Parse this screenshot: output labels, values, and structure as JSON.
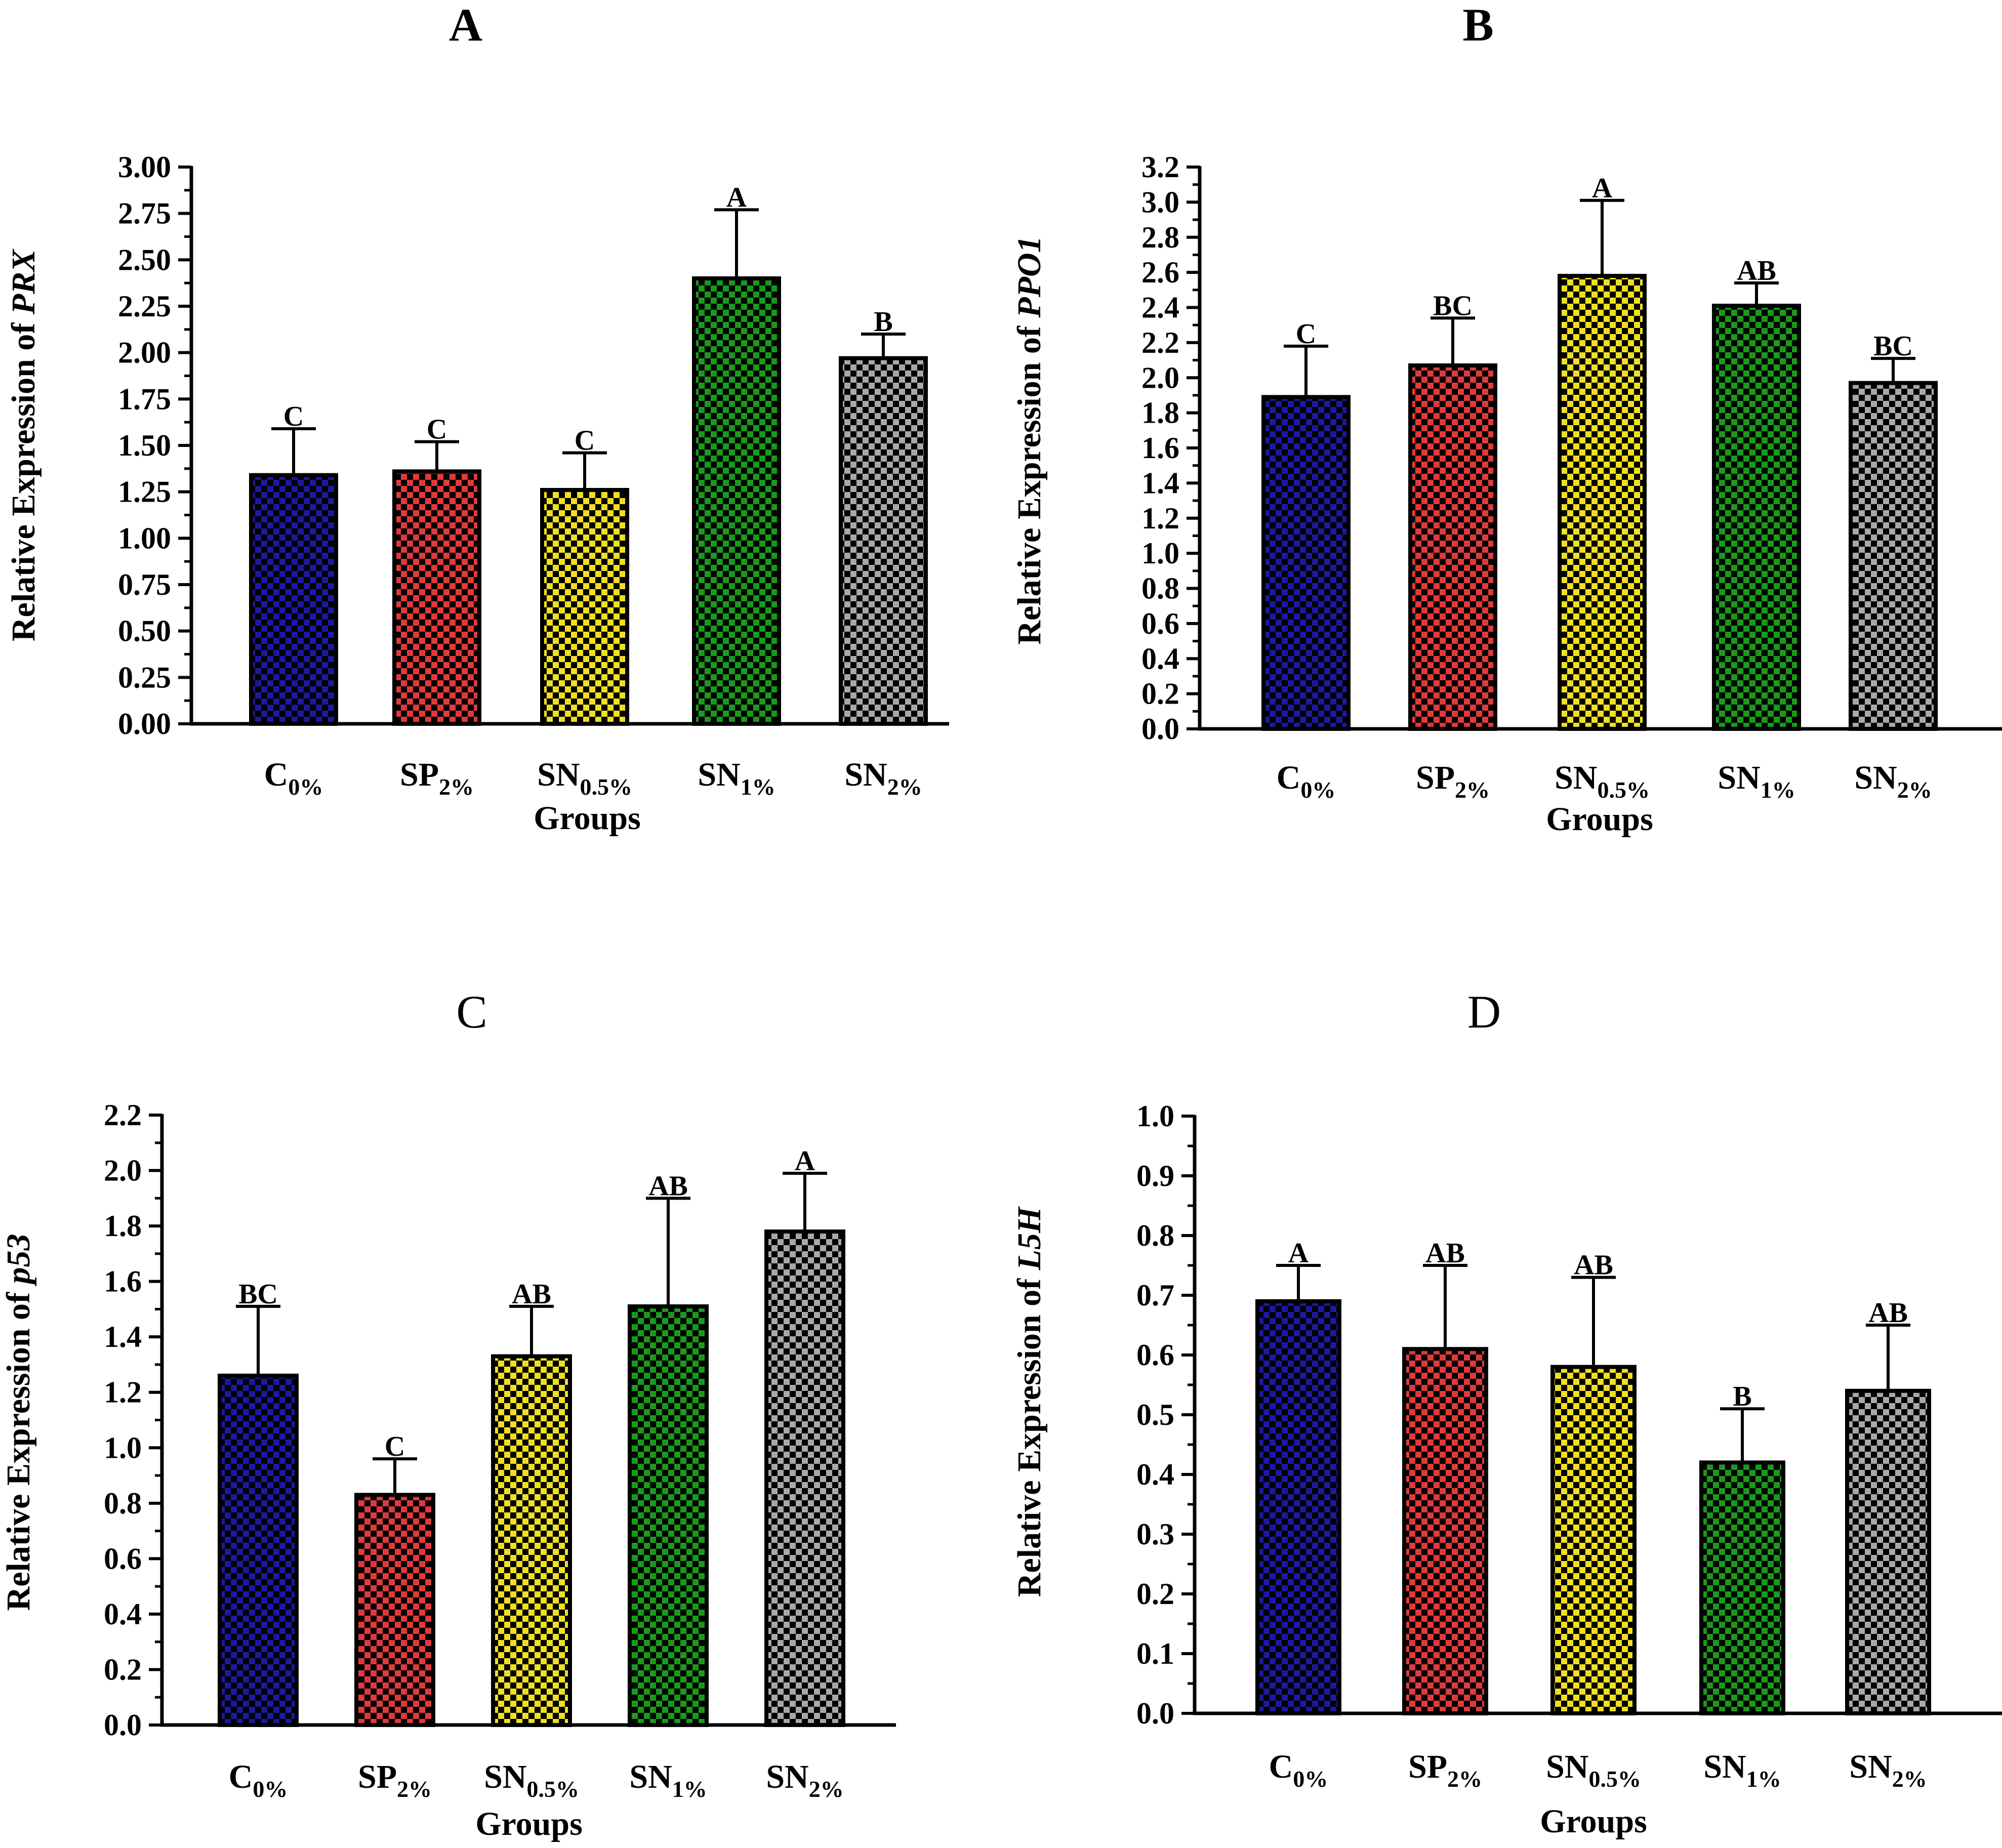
{
  "figure": {
    "panel_ids": [
      "A",
      "B",
      "C",
      "D"
    ],
    "colors": {
      "C0": "#1a1aa0",
      "SP2": "#e03a3a",
      "SN05": "#f0e020",
      "SN1": "#1a9a1a",
      "SN2": "#a8a8a8"
    }
  },
  "chart_data": [
    {
      "panel": "A",
      "type": "bar",
      "title": "A",
      "xlabel": "Groups",
      "ylabel_prefix": "Relative Expression of ",
      "ylabel_gene": "PRX",
      "ylim": [
        0,
        3.0
      ],
      "ytick_step": 0.25,
      "ytick_decimals": 2,
      "yticks": [
        "0.00",
        "0.25",
        "0.50",
        "0.75",
        "1.00",
        "1.25",
        "1.50",
        "1.75",
        "2.00",
        "2.25",
        "2.50",
        "2.75",
        "3.00"
      ],
      "categories": [
        {
          "base": "C",
          "sub": "0%"
        },
        {
          "base": "SP",
          "sub": "2%"
        },
        {
          "base": "SN",
          "sub": "0.5%"
        },
        {
          "base": "SN",
          "sub": "1%"
        },
        {
          "base": "SN",
          "sub": "2%"
        }
      ],
      "values": [
        1.34,
        1.36,
        1.26,
        2.4,
        1.97
      ],
      "errors": [
        0.25,
        0.16,
        0.2,
        0.37,
        0.13
      ],
      "significance": [
        "C",
        "C",
        "C",
        "A",
        "B"
      ]
    },
    {
      "panel": "B",
      "type": "bar",
      "title": "B",
      "xlabel": "Groups",
      "ylabel_prefix": "Relative Expression of ",
      "ylabel_gene": "PPO1",
      "ylim": [
        0,
        3.2
      ],
      "ytick_step": 0.2,
      "ytick_decimals": 1,
      "yticks": [
        "0.0",
        "0.2",
        "0.4",
        "0.6",
        "0.8",
        "1.0",
        "1.2",
        "1.4",
        "1.6",
        "1.8",
        "2.0",
        "2.2",
        "2.4",
        "2.6",
        "2.8",
        "3.0",
        "3.2"
      ],
      "categories": [
        {
          "base": "C",
          "sub": "0%"
        },
        {
          "base": "SP",
          "sub": "2%"
        },
        {
          "base": "SN",
          "sub": "0.5%"
        },
        {
          "base": "SN",
          "sub": "1%"
        },
        {
          "base": "SN",
          "sub": "2%"
        }
      ],
      "values": [
        1.89,
        2.07,
        2.58,
        2.41,
        1.97
      ],
      "errors": [
        0.29,
        0.27,
        0.43,
        0.13,
        0.14
      ],
      "significance": [
        "C",
        "BC",
        "A",
        "AB",
        "BC"
      ]
    },
    {
      "panel": "C",
      "type": "bar",
      "title": "C",
      "xlabel": "Groups",
      "ylabel_prefix": "Relative Expression of ",
      "ylabel_gene": "p53",
      "ylim": [
        0,
        2.2
      ],
      "ytick_step": 0.2,
      "ytick_decimals": 1,
      "yticks": [
        "0.0",
        "0.2",
        "0.4",
        "0.6",
        "0.8",
        "1.0",
        "1.2",
        "1.4",
        "1.6",
        "1.8",
        "2.0",
        "2.2"
      ],
      "categories": [
        {
          "base": "C",
          "sub": "0%"
        },
        {
          "base": "SP",
          "sub": "2%"
        },
        {
          "base": "SN",
          "sub": "0.5%"
        },
        {
          "base": "SN",
          "sub": "1%"
        },
        {
          "base": "SN",
          "sub": "2%"
        }
      ],
      "values": [
        1.26,
        0.83,
        1.33,
        1.51,
        1.78
      ],
      "errors": [
        0.25,
        0.13,
        0.18,
        0.39,
        0.21
      ],
      "significance": [
        "BC",
        "C",
        "AB",
        "AB",
        "A"
      ]
    },
    {
      "panel": "D",
      "type": "bar",
      "title": "D",
      "xlabel": "Groups",
      "ylabel_prefix": "Relative Expression of ",
      "ylabel_gene": "L5H",
      "ylim": [
        0,
        1.0
      ],
      "ytick_step": 0.1,
      "ytick_decimals": 1,
      "yticks": [
        "0.0",
        "0.1",
        "0.2",
        "0.3",
        "0.4",
        "0.5",
        "0.6",
        "0.7",
        "0.8",
        "0.9",
        "1.0"
      ],
      "categories": [
        {
          "base": "C",
          "sub": "0%"
        },
        {
          "base": "SP",
          "sub": "2%"
        },
        {
          "base": "SN",
          "sub": "0.5%"
        },
        {
          "base": "SN",
          "sub": "1%"
        },
        {
          "base": "SN",
          "sub": "2%"
        }
      ],
      "values": [
        0.69,
        0.61,
        0.58,
        0.42,
        0.54
      ],
      "errors": [
        0.06,
        0.14,
        0.15,
        0.09,
        0.11
      ],
      "significance": [
        "A",
        "AB",
        "AB",
        "B",
        "AB"
      ]
    }
  ]
}
